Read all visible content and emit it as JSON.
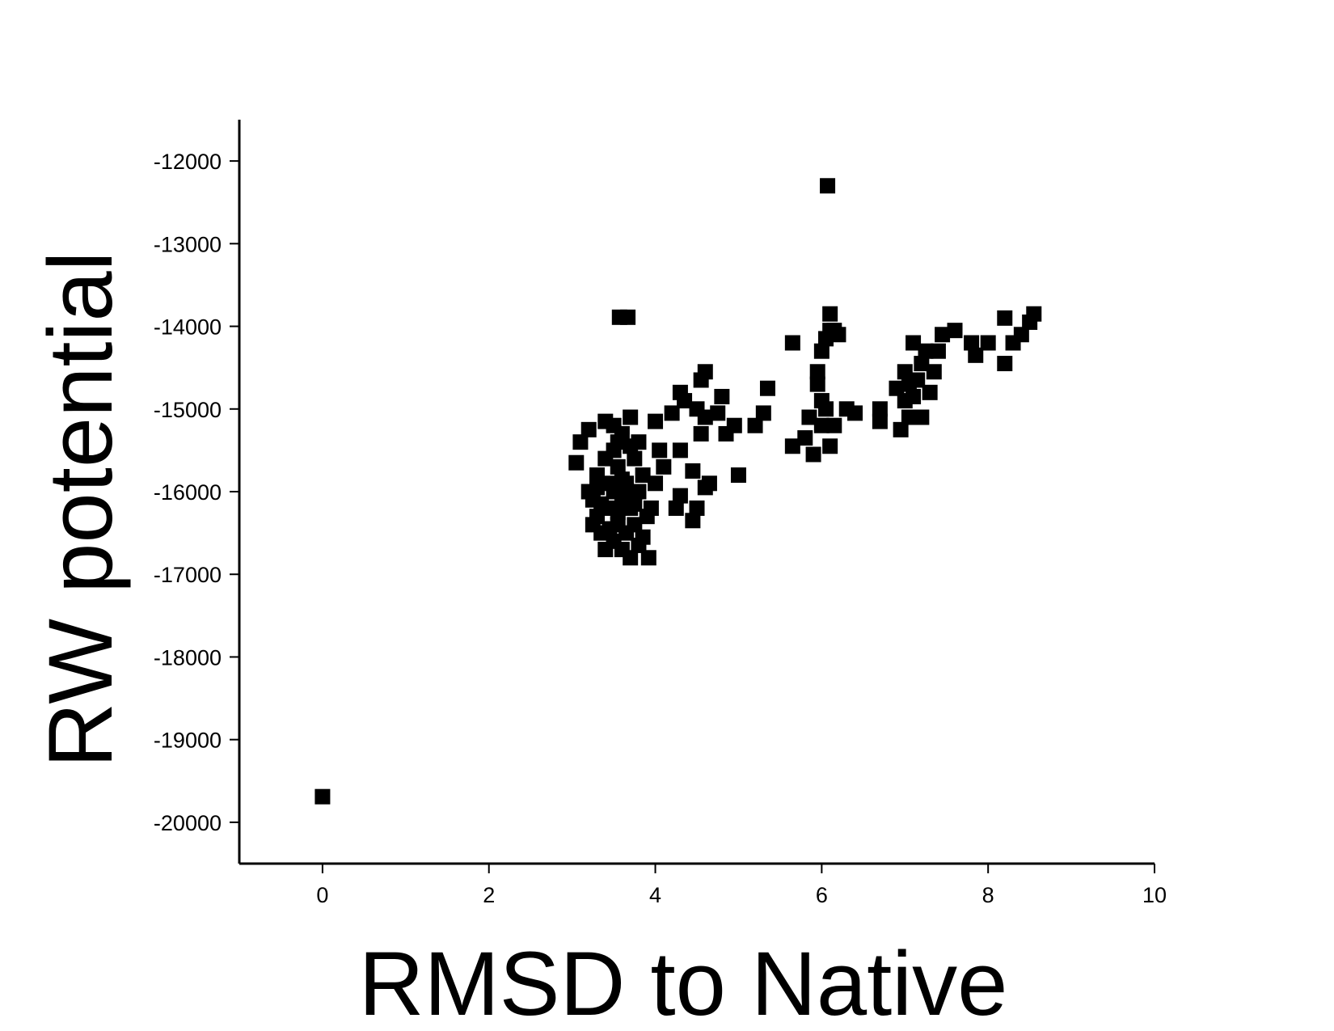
{
  "chart_data": {
    "type": "scatter",
    "x_label": "RMSD to Native",
    "y_label": "RW potential",
    "color": "#000000",
    "xlim": [
      -1,
      10
    ],
    "xticks": [
      0,
      2,
      4,
      6,
      8,
      10
    ],
    "ylim": [
      -20500,
      -11500
    ],
    "yticks": [
      -20000,
      -19000,
      -18000,
      -17000,
      -16000,
      -15000,
      -14000,
      -13000,
      -12000
    ],
    "x": [
      0,
      6.07,
      3.57,
      3.67,
      3.05,
      3.1,
      3.2,
      3.25,
      3.3,
      3.3,
      3.35,
      3.4,
      3.4,
      3.45,
      3.45,
      3.5,
      3.5,
      3.5,
      3.55,
      3.55,
      3.6,
      3.6,
      3.6,
      3.65,
      3.65,
      3.7,
      3.7,
      3.7,
      3.75,
      3.75,
      3.8,
      3.8,
      3.85,
      3.9,
      3.92,
      3.5,
      3.4,
      3.3,
      3.6,
      3.55,
      3.45,
      3.65,
      3.75,
      3.35,
      3.25,
      3.55,
      3.7,
      3.8,
      3.85,
      3.2,
      3.95,
      4.0,
      4.05,
      4.1,
      4.0,
      4.2,
      4.25,
      4.3,
      4.3,
      4.35,
      4.3,
      4.45,
      4.45,
      4.5,
      4.5,
      4.55,
      4.55,
      4.6,
      4.6,
      4.6,
      4.65,
      4.75,
      4.8,
      4.85,
      4.95,
      5.0,
      5.2,
      5.3,
      5.35,
      5.65,
      5.65,
      5.8,
      5.85,
      5.9,
      5.95,
      5.95,
      6.0,
      6.0,
      6.0,
      6.05,
      6.05,
      6.1,
      6.1,
      6.1,
      6.15,
      6.15,
      6.2,
      6.3,
      6.4,
      6.7,
      6.7,
      6.9,
      6.95,
      7.0,
      7.0,
      7.05,
      7.05,
      7.1,
      7.1,
      7.15,
      7.2,
      7.2,
      7.25,
      7.3,
      7.35,
      7.4,
      7.45,
      7.6,
      7.8,
      7.85,
      8.0,
      8.2,
      8.2,
      8.3,
      8.4,
      8.5,
      8.55
    ],
    "values": [
      -19690,
      -12300,
      -13890,
      -13890,
      -15650,
      -15400,
      -15250,
      -16100,
      -16300,
      -15800,
      -16500,
      -16700,
      -15150,
      -15900,
      -16200,
      -16000,
      -16600,
      -15500,
      -16400,
      -15700,
      -16100,
      -16700,
      -15300,
      -15900,
      -16500,
      -16200,
      -15100,
      -16800,
      -15600,
      -16400,
      -16000,
      -16650,
      -15800,
      -16300,
      -16800,
      -15200,
      -15600,
      -15950,
      -15850,
      -16250,
      -16450,
      -16050,
      -16150,
      -16150,
      -16400,
      -15400,
      -15450,
      -15400,
      -16550,
      -16000,
      -16200,
      -15900,
      -15500,
      -15700,
      -15150,
      -15050,
      -16200,
      -15500,
      -16050,
      -14900,
      -14800,
      -15750,
      -16350,
      -16200,
      -15000,
      -15300,
      -14650,
      -14550,
      -15100,
      -15950,
      -15900,
      -15050,
      -14850,
      -15300,
      -15200,
      -15800,
      -15200,
      -15050,
      -14750,
      -14200,
      -15450,
      -15350,
      -15100,
      -15550,
      -14550,
      -14700,
      -14900,
      -15200,
      -14300,
      -14150,
      -15000,
      -13850,
      -14050,
      -15450,
      -14050,
      -15200,
      -14100,
      -15000,
      -15050,
      -15000,
      -15150,
      -14750,
      -15250,
      -14550,
      -14900,
      -14700,
      -15100,
      -14200,
      -14850,
      -14650,
      -15100,
      -14450,
      -14300,
      -14800,
      -14550,
      -14300,
      -14100,
      -14050,
      -14200,
      -14350,
      -14200,
      -13900,
      -14450,
      -14200,
      -14100,
      -13950,
      -13850
    ]
  }
}
